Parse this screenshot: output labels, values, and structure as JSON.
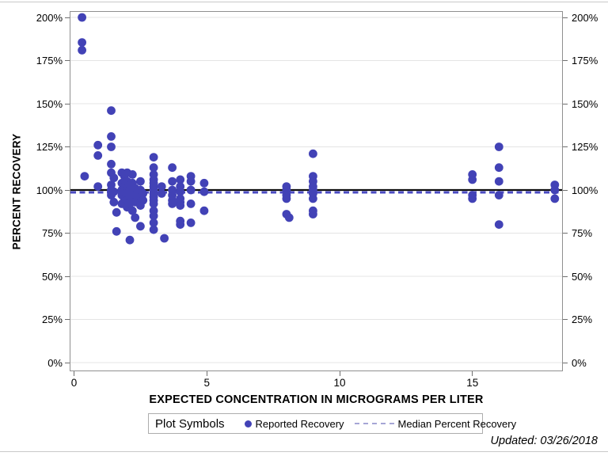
{
  "page": {
    "updated_label": "Updated: 03/26/2018"
  },
  "legend": {
    "title": "Plot Symbols",
    "entries": [
      {
        "label": "Reported Recovery",
        "symbol": "dot"
      },
      {
        "label": "Median Percent Recovery",
        "symbol": "dashed-line"
      }
    ],
    "position": "bottom-center"
  },
  "chart_data": {
    "type": "scatter",
    "title": "",
    "xlabel": "EXPECTED CONCENTRATION IN MICROGRAMS PER LITER",
    "ylabel": "PERCENT RECOVERY",
    "x_ticks": [
      0,
      5,
      10,
      15
    ],
    "xlim": [
      -0.15,
      18.45
    ],
    "y_ticks_percent": [
      0,
      25,
      50,
      75,
      100,
      125,
      150,
      175,
      200
    ],
    "ylim_percent": [
      -5,
      203
    ],
    "y_tick_suffix": "%",
    "grid": "horizontal",
    "reference_line_percent": 100,
    "median_percent": 98.6,
    "colors": {
      "marker": "#4242b6",
      "reference_line": "#0f0f0f",
      "median_line": "#4b4bc2",
      "legend_dash": "#a6a6d6",
      "grid": "#e4e4e4",
      "frame": "#8f8f8f",
      "tick": "#6f6f6f"
    },
    "series": [
      {
        "name": "Reported Recovery",
        "marker": "circle",
        "points": [
          [
            0.3,
            200
          ],
          [
            0.3,
            185.5
          ],
          [
            0.3,
            181
          ],
          [
            0.4,
            108
          ],
          [
            0.9,
            126
          ],
          [
            0.9,
            120
          ],
          [
            0.9,
            102
          ],
          [
            1.4,
            146
          ],
          [
            1.4,
            131
          ],
          [
            1.4,
            125
          ],
          [
            1.4,
            115
          ],
          [
            1.4,
            110
          ],
          [
            1.4,
            103
          ],
          [
            1.4,
            100
          ],
          [
            1.4,
            97
          ],
          [
            1.5,
            107
          ],
          [
            1.5,
            99
          ],
          [
            1.5,
            93
          ],
          [
            1.6,
            87
          ],
          [
            1.6,
            76
          ],
          [
            1.8,
            110
          ],
          [
            1.8,
            104
          ],
          [
            1.8,
            100
          ],
          [
            1.8,
            97
          ],
          [
            1.8,
            92
          ],
          [
            1.9,
            108
          ],
          [
            1.9,
            102
          ],
          [
            1.9,
            99
          ],
          [
            1.9,
            95
          ],
          [
            2.0,
            110
          ],
          [
            2.0,
            105
          ],
          [
            2.0,
            101
          ],
          [
            2.0,
            98
          ],
          [
            2.0,
            94
          ],
          [
            2.0,
            90
          ],
          [
            2.1,
            103
          ],
          [
            2.1,
            100
          ],
          [
            2.1,
            96
          ],
          [
            2.1,
            92
          ],
          [
            2.1,
            71
          ],
          [
            2.2,
            109
          ],
          [
            2.2,
            104
          ],
          [
            2.2,
            99
          ],
          [
            2.2,
            95
          ],
          [
            2.2,
            88
          ],
          [
            2.3,
            101
          ],
          [
            2.3,
            97
          ],
          [
            2.3,
            93
          ],
          [
            2.3,
            84
          ],
          [
            2.5,
            105
          ],
          [
            2.5,
            100
          ],
          [
            2.5,
            96
          ],
          [
            2.5,
            91
          ],
          [
            2.5,
            79
          ],
          [
            2.6,
            98
          ],
          [
            2.6,
            94
          ],
          [
            3.0,
            119
          ],
          [
            3.0,
            113
          ],
          [
            3.0,
            109
          ],
          [
            3.0,
            106
          ],
          [
            3.0,
            104
          ],
          [
            3.0,
            102
          ],
          [
            3.0,
            100
          ],
          [
            3.0,
            98
          ],
          [
            3.0,
            96
          ],
          [
            3.0,
            94
          ],
          [
            3.0,
            92
          ],
          [
            3.0,
            88
          ],
          [
            3.0,
            85
          ],
          [
            3.0,
            81
          ],
          [
            3.0,
            77
          ],
          [
            3.3,
            102
          ],
          [
            3.3,
            98
          ],
          [
            3.4,
            72
          ],
          [
            3.7,
            113
          ],
          [
            3.7,
            105
          ],
          [
            3.7,
            100
          ],
          [
            3.7,
            97
          ],
          [
            3.7,
            94
          ],
          [
            3.7,
            92
          ],
          [
            4.0,
            106
          ],
          [
            4.0,
            102
          ],
          [
            4.0,
            99
          ],
          [
            4.0,
            95
          ],
          [
            4.0,
            93
          ],
          [
            4.0,
            91
          ],
          [
            4.0,
            82
          ],
          [
            4.0,
            80
          ],
          [
            4.4,
            108
          ],
          [
            4.4,
            105
          ],
          [
            4.4,
            100
          ],
          [
            4.4,
            92
          ],
          [
            4.4,
            81
          ],
          [
            4.9,
            104
          ],
          [
            4.9,
            99
          ],
          [
            4.9,
            88
          ],
          [
            8.0,
            102
          ],
          [
            8.0,
            100
          ],
          [
            8.0,
            97
          ],
          [
            8.0,
            95
          ],
          [
            8.0,
            86
          ],
          [
            8.1,
            84
          ],
          [
            9.0,
            121
          ],
          [
            9.0,
            108
          ],
          [
            9.0,
            105
          ],
          [
            9.0,
            102
          ],
          [
            9.0,
            100
          ],
          [
            9.0,
            98
          ],
          [
            9.0,
            95
          ],
          [
            9.0,
            88
          ],
          [
            9.0,
            86
          ],
          [
            15.0,
            109
          ],
          [
            15.0,
            106
          ],
          [
            15.0,
            97
          ],
          [
            15.0,
            95
          ],
          [
            16.0,
            125
          ],
          [
            16.0,
            113
          ],
          [
            16.0,
            105
          ],
          [
            16.0,
            97
          ],
          [
            16.0,
            80
          ],
          [
            18.1,
            103
          ],
          [
            18.1,
            100
          ],
          [
            18.1,
            95
          ]
        ]
      }
    ]
  }
}
